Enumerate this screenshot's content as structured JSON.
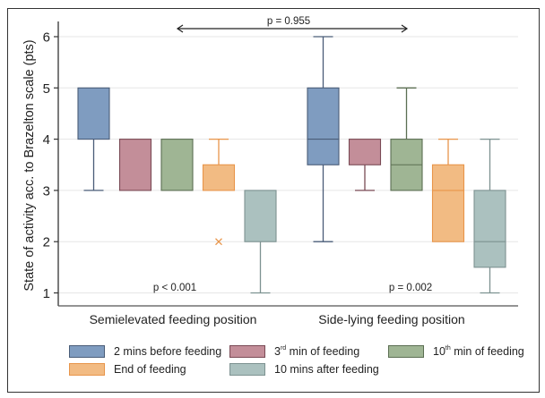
{
  "chart_data": {
    "type": "box",
    "title": "",
    "xlabel": "",
    "ylabel": "State of activity acc. to Brazelton scale (pts)",
    "ylim": [
      0.75,
      6.25
    ],
    "yticks": [
      1,
      2,
      3,
      4,
      5,
      6
    ],
    "grid": true,
    "categories": [
      "Semielevated feeding position",
      "Side-lying feeding position"
    ],
    "series": [
      {
        "name": "2 mins before feeding",
        "color": "#7f9cc0",
        "stroke": "#4a5d78",
        "boxes": [
          {
            "category": "Semielevated feeding position",
            "whisker_low": 3,
            "q1": 4,
            "median": 4,
            "q3": 5,
            "whisker_high": 5,
            "outliers": []
          },
          {
            "category": "Side-lying feeding position",
            "whisker_low": 2,
            "q1": 3.5,
            "median": 4,
            "q3": 5,
            "whisker_high": 6,
            "outliers": []
          }
        ]
      },
      {
        "name": "3rd min of feeding",
        "name_base": "3",
        "name_sup": "rd",
        "name_rest": " min of feeding",
        "color": "#c38e99",
        "stroke": "#7a4a55",
        "boxes": [
          {
            "category": "Semielevated feeding position",
            "whisker_low": 3,
            "q1": 3,
            "median": 3,
            "q3": 4,
            "whisker_high": 4,
            "outliers": []
          },
          {
            "category": "Side-lying feeding position",
            "whisker_low": 3,
            "q1": 3.5,
            "median": 4,
            "q3": 4,
            "whisker_high": 4,
            "outliers": []
          }
        ]
      },
      {
        "name": "10th min of feeding",
        "name_base": "10",
        "name_sup": "th",
        "name_rest": " min of feeding",
        "color": "#9fb594",
        "stroke": "#5b6e52",
        "boxes": [
          {
            "category": "Semielevated feeding position",
            "whisker_low": 3,
            "q1": 3,
            "median": 3,
            "q3": 4,
            "whisker_high": 4,
            "outliers": []
          },
          {
            "category": "Side-lying feeding position",
            "whisker_low": 3,
            "q1": 3,
            "median": 3.5,
            "q3": 4,
            "whisker_high": 5,
            "outliers": []
          }
        ]
      },
      {
        "name": "End of feeding",
        "color": "#f2bb83",
        "stroke": "#e8954a",
        "boxes": [
          {
            "category": "Semielevated feeding position",
            "whisker_low": 3,
            "q1": 3,
            "median": 3,
            "q3": 3.5,
            "whisker_high": 4,
            "outliers": [
              2
            ]
          },
          {
            "category": "Side-lying feeding position",
            "whisker_low": 2,
            "q1": 2,
            "median": 3,
            "q3": 3.5,
            "whisker_high": 4,
            "outliers": []
          }
        ]
      },
      {
        "name": "10 mins after feeding",
        "color": "#abc1bf",
        "stroke": "#7d9291",
        "boxes": [
          {
            "category": "Semielevated feeding position",
            "whisker_low": 1,
            "q1": 2,
            "median": 2,
            "q3": 3,
            "whisker_high": 3,
            "outliers": []
          },
          {
            "category": "Side-lying feeding position",
            "whisker_low": 1,
            "q1": 1.5,
            "median": 2,
            "q3": 3,
            "whisker_high": 4,
            "outliers": []
          }
        ]
      }
    ],
    "annotations": [
      {
        "text": "p = 0.955",
        "type": "double-arrow",
        "between": "2 mins before feeding (groups)"
      },
      {
        "text": "p < 0.001",
        "category": "Semielevated feeding position"
      },
      {
        "text": "p = 0.002",
        "category": "Side-lying feeding position"
      }
    ],
    "legend_position": "bottom"
  }
}
